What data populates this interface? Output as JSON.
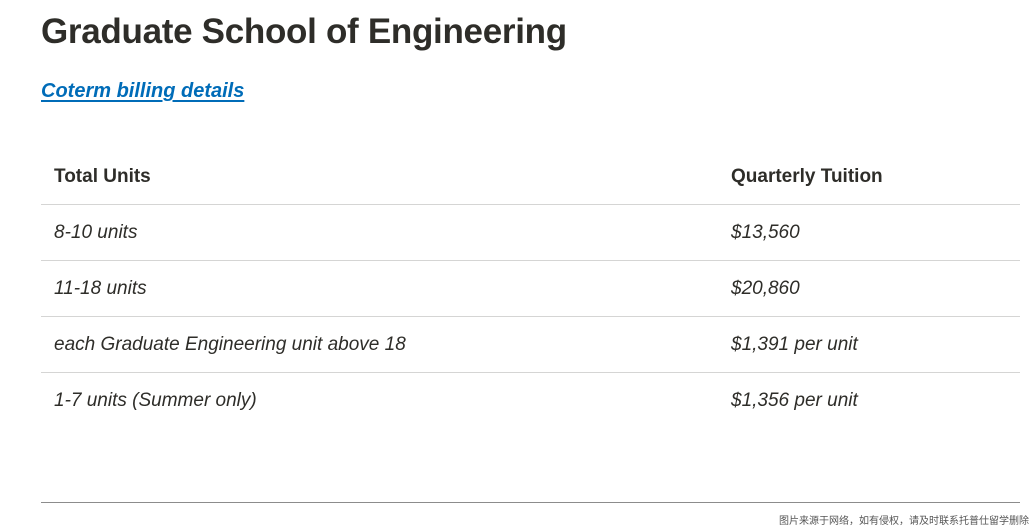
{
  "page": {
    "title": "Graduate School of Engineering",
    "link_label": "Coterm billing details"
  },
  "table": {
    "headers": [
      "Total Units",
      "Quarterly Tuition"
    ],
    "rows": [
      [
        "8-10 units",
        "$13,560"
      ],
      [
        "11-18 units",
        "$20,860"
      ],
      [
        "each Graduate Engineering unit above 18",
        "$1,391 per unit"
      ],
      [
        "1-7 units (Summer only)",
        "$1,356 per unit"
      ]
    ]
  },
  "watermark": "图片来源于网络，如有侵权，请及时联系托普仕留学删除",
  "colors": {
    "link": "#006cb8",
    "text": "#2e2d29",
    "row_divider": "#d5d5d4"
  }
}
